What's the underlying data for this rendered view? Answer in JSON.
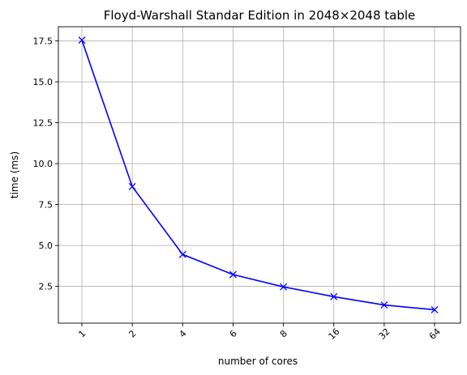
{
  "chart_data": {
    "type": "line",
    "title": "Floyd-Warshall Standar Edition in 2048×2048 table",
    "xlabel": "number of cores",
    "ylabel": "time (ms)",
    "categories": [
      "1",
      "2",
      "4",
      "6",
      "8",
      "16",
      "32",
      "64"
    ],
    "series": [
      {
        "values": [
          17.55,
          8.6,
          4.45,
          3.22,
          2.47,
          1.87,
          1.36,
          1.07
        ],
        "color": "#0000ff",
        "marker": "x"
      }
    ],
    "yticks": [
      2.5,
      5.0,
      7.5,
      10.0,
      12.5,
      15.0,
      17.5
    ],
    "yticklabels": [
      "2.5",
      "5.0",
      "7.5",
      "10.0",
      "12.5",
      "15.0",
      "17.5"
    ],
    "ylim": [
      0.25,
      18.37
    ],
    "xtick_rotation": 45,
    "grid": true,
    "legend": "none"
  }
}
